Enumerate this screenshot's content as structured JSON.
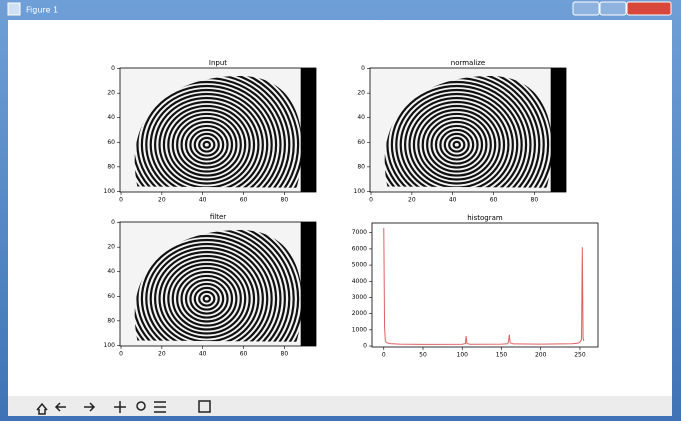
{
  "window": {
    "title": "Figure 1"
  },
  "chart_data": [
    {
      "type": "image",
      "title": "Input",
      "xlim": [
        -0.5,
        95.5
      ],
      "ylim": [
        100.5,
        -0.5
      ],
      "xticks": [
        0,
        20,
        40,
        60,
        80
      ],
      "yticks": [
        0,
        20,
        40,
        60,
        80,
        100
      ]
    },
    {
      "type": "image",
      "title": "normalize",
      "xlim": [
        -0.5,
        95.5
      ],
      "ylim": [
        100.5,
        -0.5
      ],
      "xticks": [
        0,
        20,
        40,
        60,
        80
      ],
      "yticks": [
        0,
        20,
        40,
        60,
        80,
        100
      ]
    },
    {
      "type": "image",
      "title": "filter",
      "xlim": [
        -0.5,
        95.5
      ],
      "ylim": [
        100.5,
        -0.5
      ],
      "xticks": [
        0,
        20,
        40,
        60,
        80
      ],
      "yticks": [
        0,
        20,
        40,
        60,
        80,
        100
      ]
    },
    {
      "type": "line",
      "title": "histogram",
      "color": "#e06060",
      "x": [
        0,
        1,
        2,
        4,
        8,
        20,
        50,
        100,
        104,
        105,
        106,
        110,
        150,
        158,
        159,
        160,
        161,
        165,
        200,
        240,
        248,
        250,
        252,
        253,
        254,
        255
      ],
      "values": [
        7300,
        1200,
        300,
        200,
        150,
        120,
        100,
        110,
        150,
        620,
        150,
        110,
        120,
        140,
        300,
        700,
        200,
        130,
        120,
        140,
        180,
        250,
        400,
        6100,
        500,
        300
      ],
      "xlim": [
        -15,
        273
      ],
      "ylim": [
        -60,
        7600
      ],
      "xticks": [
        0,
        50,
        100,
        150,
        200,
        250
      ],
      "yticks": [
        0,
        1000,
        2000,
        3000,
        4000,
        5000,
        6000,
        7000
      ]
    }
  ]
}
